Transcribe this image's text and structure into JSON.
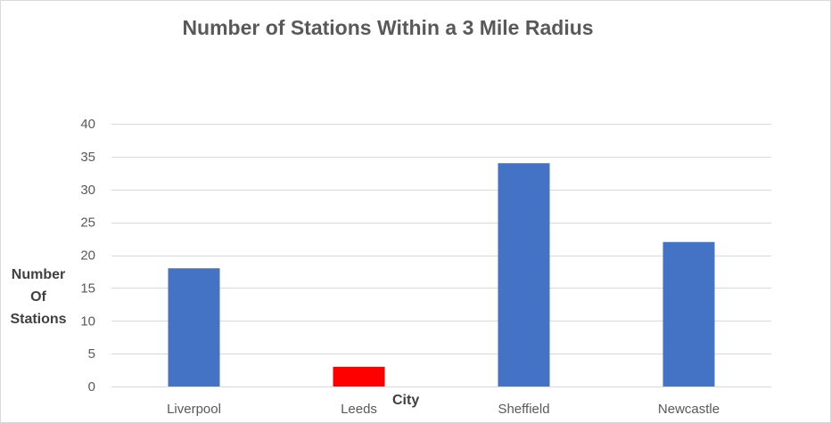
{
  "chart_data": {
    "type": "bar",
    "title": "Number of Stations Within a 3 Mile Radius",
    "xlabel": "City",
    "ylabel": "Number Of Stations",
    "ylabel_lines": [
      "Number",
      "Of",
      "Stations"
    ],
    "categories": [
      "Liverpool",
      "Leeds",
      "Sheffield",
      "Newcastle"
    ],
    "values": [
      18,
      3,
      34,
      22
    ],
    "bar_colors": [
      "#4472c4",
      "#ff0000",
      "#4472c4",
      "#4472c4"
    ],
    "ylim": [
      0,
      40
    ],
    "yticks": [
      0,
      5,
      10,
      15,
      20,
      25,
      30,
      35,
      40
    ],
    "grid": true,
    "legend": "none"
  }
}
